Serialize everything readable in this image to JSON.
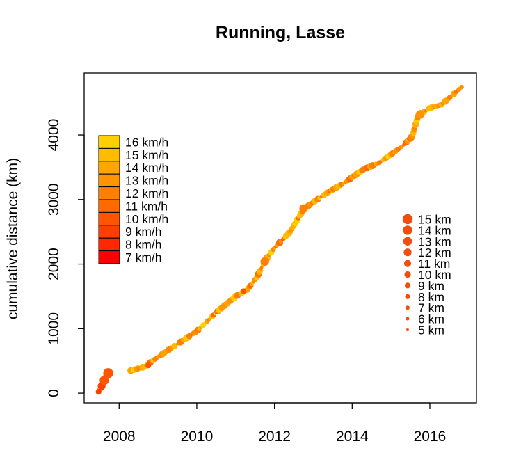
{
  "chart_data": {
    "type": "scatter",
    "title": "Running, Lasse",
    "xlabel": "",
    "ylabel": "cumulative distance (km)",
    "xlim": [
      2007.1,
      2017.2
    ],
    "ylim": [
      -150,
      4960
    ],
    "x_ticks": [
      2008,
      2010,
      2012,
      2014,
      2016
    ],
    "x_tick_labels": [
      "2008",
      "2010",
      "2012",
      "2014",
      "2016"
    ],
    "y_ticks": [
      0,
      1000,
      2000,
      3000,
      4000
    ],
    "y_tick_labels": [
      "0",
      "1000",
      "2000",
      "3000",
      "4000"
    ],
    "speed_legend": {
      "labels": [
        "16 km/h",
        "15 km/h",
        "14 km/h",
        "13 km/h",
        "12 km/h",
        "11 km/h",
        "10 km/h",
        "9 km/h",
        "8 km/h",
        "7 km/h"
      ],
      "speeds": [
        16,
        15,
        14,
        13,
        12,
        11,
        10,
        9,
        8,
        7
      ],
      "colors": [
        "#FFD000",
        "#FFBB00",
        "#FFA500",
        "#FF9400",
        "#FF8000",
        "#FF6A00",
        "#FF5500",
        "#FF3F00",
        "#FF2800",
        "#FF0000"
      ]
    },
    "size_legend": {
      "labels": [
        "15 km",
        "14 km",
        "13 km",
        "12 km",
        "11 km",
        "10 km",
        "9 km",
        "8 km",
        "7 km",
        "6 km",
        "5 km"
      ],
      "distances_km": [
        15,
        14,
        13,
        12,
        11,
        10,
        9,
        8,
        7,
        6,
        5
      ],
      "color": "#F24D0F"
    },
    "trajectory": [
      {
        "x": 2007.45,
        "y": 0
      },
      {
        "x": 2007.55,
        "y": 100
      },
      {
        "x": 2007.62,
        "y": 200
      },
      {
        "x": 2007.7,
        "y": 300
      },
      {
        "x": 2008.3,
        "y": 350
      },
      {
        "x": 2008.65,
        "y": 410
      },
      {
        "x": 2009.0,
        "y": 560
      },
      {
        "x": 2009.5,
        "y": 760
      },
      {
        "x": 2010.0,
        "y": 960
      },
      {
        "x": 2010.5,
        "y": 1250
      },
      {
        "x": 2011.0,
        "y": 1500
      },
      {
        "x": 2011.3,
        "y": 1600
      },
      {
        "x": 2011.55,
        "y": 1800
      },
      {
        "x": 2011.75,
        "y": 2050
      },
      {
        "x": 2012.0,
        "y": 2250
      },
      {
        "x": 2012.4,
        "y": 2500
      },
      {
        "x": 2012.75,
        "y": 2850
      },
      {
        "x": 2013.0,
        "y": 2960
      },
      {
        "x": 2013.4,
        "y": 3120
      },
      {
        "x": 2013.8,
        "y": 3260
      },
      {
        "x": 2014.3,
        "y": 3470
      },
      {
        "x": 2014.7,
        "y": 3570
      },
      {
        "x": 2015.0,
        "y": 3700
      },
      {
        "x": 2015.3,
        "y": 3830
      },
      {
        "x": 2015.55,
        "y": 3980
      },
      {
        "x": 2015.7,
        "y": 4300
      },
      {
        "x": 2016.0,
        "y": 4420
      },
      {
        "x": 2016.3,
        "y": 4470
      },
      {
        "x": 2016.55,
        "y": 4600
      },
      {
        "x": 2016.85,
        "y": 4760
      }
    ],
    "notable_runs": [
      {
        "x": 2007.47,
        "y": 20,
        "distance_km": 9,
        "speed_kmh": 9
      },
      {
        "x": 2007.55,
        "y": 110,
        "distance_km": 12,
        "speed_kmh": 9
      },
      {
        "x": 2007.62,
        "y": 200,
        "distance_km": 14,
        "speed_kmh": 10
      },
      {
        "x": 2007.72,
        "y": 310,
        "distance_km": 15,
        "speed_kmh": 10
      },
      {
        "x": 2008.75,
        "y": 430,
        "distance_km": 9,
        "speed_kmh": 10
      },
      {
        "x": 2011.2,
        "y": 1580,
        "distance_km": 9,
        "speed_kmh": 10
      },
      {
        "x": 2011.75,
        "y": 2040,
        "distance_km": 13,
        "speed_kmh": 12
      },
      {
        "x": 2012.75,
        "y": 2860,
        "distance_km": 13,
        "speed_kmh": 12
      },
      {
        "x": 2015.75,
        "y": 4320,
        "distance_km": 13,
        "speed_kmh": 13
      }
    ]
  }
}
